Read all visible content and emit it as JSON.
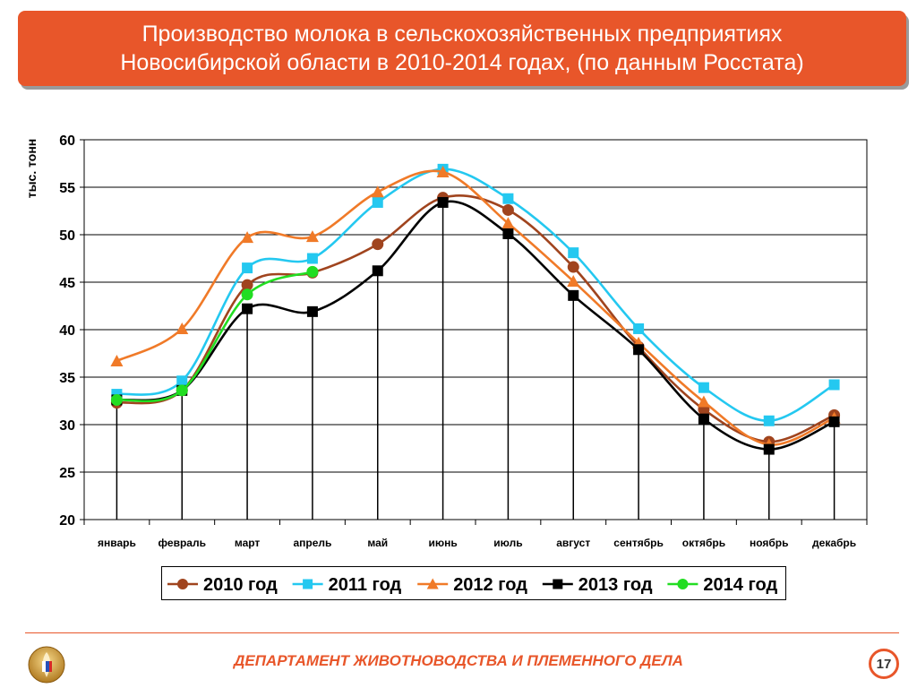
{
  "header": {
    "title": "Производство молока в сельскохозяйственных предприятиях\nНовосибирской области в 2010-2014 годах, (по данным Росстата)"
  },
  "footer": {
    "department": "ДЕПАРТАМЕНТ ЖИВОТНОВОДСТВА И ПЛЕМЕННОГО ДЕЛА",
    "page_number": "17",
    "logo_icon": "wheat-emblem-icon"
  },
  "chart_data": {
    "type": "line",
    "title": "Производство молока в сельскохозяйственных предприятиях Новосибирской области в 2010-2014 годах, (по данным Росстата)",
    "ylabel": "тыс. тонн",
    "xlabel": "",
    "ylim": [
      20,
      60
    ],
    "yticks": [
      20,
      25,
      30,
      35,
      40,
      45,
      50,
      55,
      60
    ],
    "grid": true,
    "legend": "bottom",
    "categories": [
      "январь",
      "февраль",
      "март",
      "апрель",
      "май",
      "июнь",
      "июль",
      "август",
      "сентябрь",
      "октябрь",
      "ноябрь",
      "декабрь"
    ],
    "series": [
      {
        "name": "2010 год",
        "marker": "circle",
        "color": "#a0441e",
        "values": [
          32.3,
          33.6,
          44.7,
          46.0,
          49.0,
          53.9,
          52.6,
          46.6,
          38.2,
          31.6,
          28.2,
          31.0
        ]
      },
      {
        "name": "2011 год",
        "marker": "square",
        "color": "#24c8f0",
        "values": [
          33.2,
          34.6,
          46.5,
          47.5,
          53.4,
          56.9,
          53.8,
          48.1,
          40.1,
          33.9,
          30.4,
          34.2
        ]
      },
      {
        "name": "2012 год",
        "marker": "triangle",
        "color": "#f07a28",
        "values": [
          36.7,
          40.1,
          49.7,
          49.8,
          54.5,
          56.6,
          51.2,
          45.1,
          38.6,
          32.4,
          27.9,
          30.7
        ]
      },
      {
        "name": "2013 год",
        "marker": "square",
        "color": "#000000",
        "values": [
          32.6,
          33.6,
          42.2,
          41.9,
          46.2,
          53.4,
          50.1,
          43.6,
          37.9,
          30.6,
          27.4,
          30.3
        ]
      },
      {
        "name": "2014 год",
        "marker": "circle",
        "color": "#22dd22",
        "values": [
          32.6,
          33.6,
          43.7,
          46.1,
          null,
          null,
          null,
          null,
          null,
          null,
          null,
          null
        ]
      }
    ]
  }
}
